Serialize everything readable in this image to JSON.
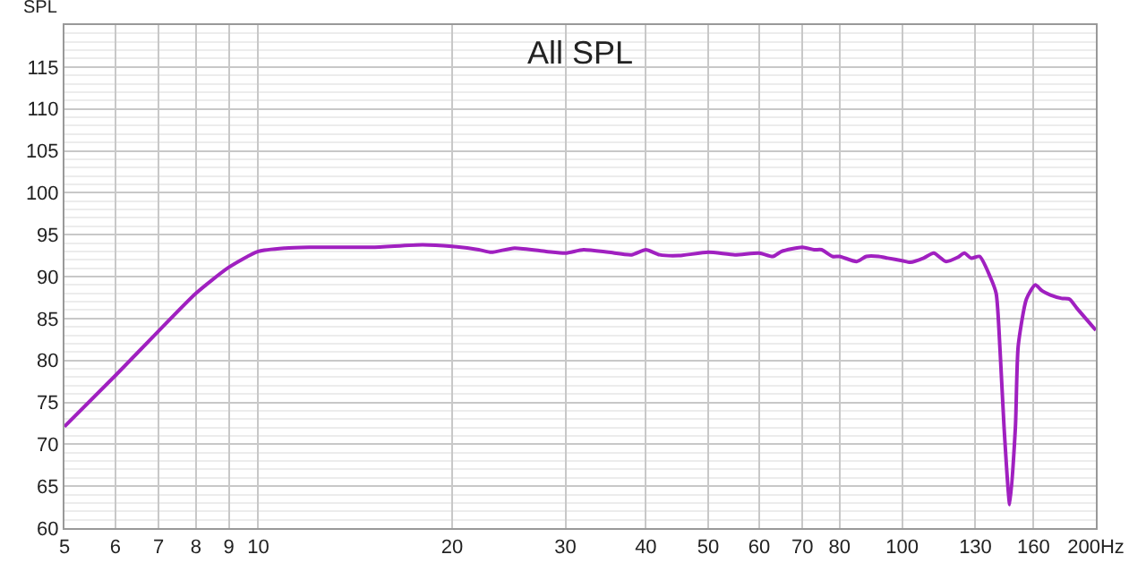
{
  "chart_data": {
    "type": "line",
    "title": "All SPL",
    "ylabel": "SPL",
    "x": [
      5,
      6,
      7,
      8,
      9,
      10,
      11,
      12,
      15,
      18,
      20,
      22,
      23,
      25,
      28,
      30,
      32,
      35,
      38,
      40,
      42,
      45,
      50,
      55,
      60,
      63,
      65,
      70,
      73,
      75,
      78,
      80,
      85,
      88,
      92,
      95,
      100,
      103,
      108,
      112,
      117,
      122,
      125,
      128,
      132,
      137,
      140,
      142,
      144,
      147,
      150,
      151.5,
      156,
      161,
      165,
      170,
      177,
      182,
      187,
      200
    ],
    "series": [
      {
        "color": "#a020c0",
        "values": [
          72.1,
          78.2,
          83.5,
          88.0,
          91.1,
          93.0,
          93.4,
          93.5,
          93.5,
          93.8,
          93.6,
          93.2,
          92.9,
          93.4,
          93.0,
          92.8,
          93.2,
          92.9,
          92.6,
          93.2,
          92.6,
          92.5,
          92.9,
          92.6,
          92.8,
          92.4,
          93.0,
          93.5,
          93.2,
          93.2,
          92.4,
          92.4,
          91.8,
          92.4,
          92.4,
          92.2,
          91.9,
          91.7,
          92.2,
          92.8,
          91.8,
          92.3,
          92.8,
          92.2,
          92.4,
          90.0,
          88.0,
          81.1,
          72.1,
          62.8,
          72.1,
          81.7,
          87.3,
          89.0,
          88.3,
          87.8,
          87.4,
          87.3,
          86.2,
          83.6
        ]
      }
    ],
    "log": "x",
    "xlim": [
      5,
      200
    ],
    "xticks": [
      5,
      6,
      7,
      8,
      9,
      10,
      20,
      30,
      40,
      50,
      60,
      70,
      80,
      100,
      130,
      160,
      {
        "value": 200,
        "label": "200Hz"
      }
    ],
    "ylim": [
      60,
      120
    ],
    "yticks": [
      60,
      65,
      70,
      75,
      80,
      85,
      90,
      95,
      100,
      105,
      110,
      115
    ],
    "grid": true,
    "line_style": "solid",
    "marker": "none",
    "legend": false
  }
}
